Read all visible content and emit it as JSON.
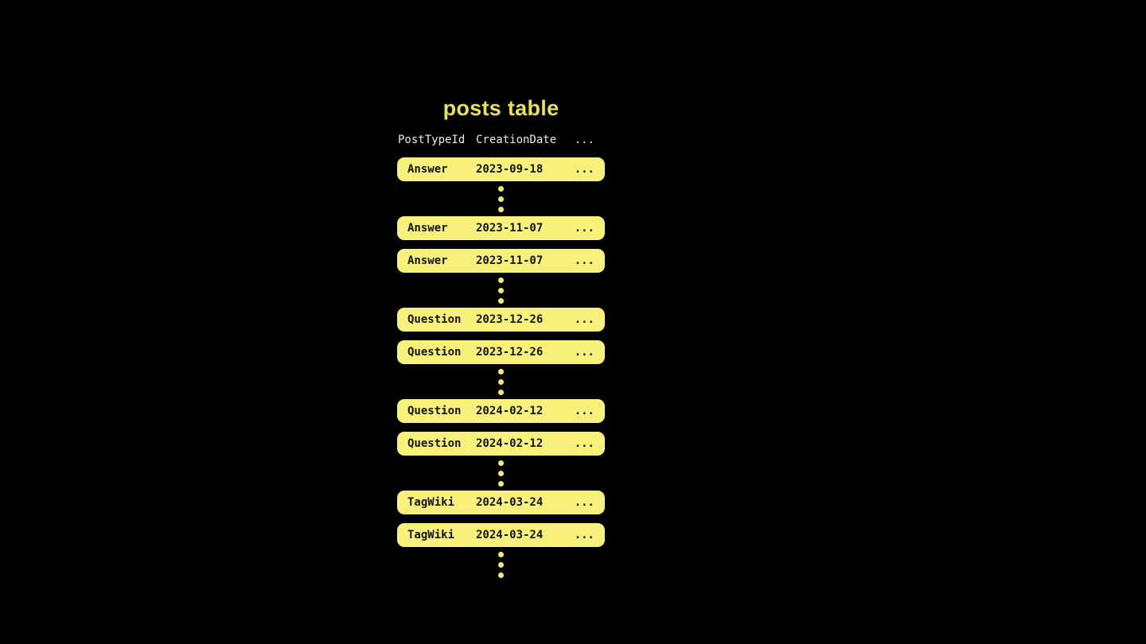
{
  "title": "posts table",
  "header": {
    "col1": "PostTypeId",
    "col2": "CreationDate",
    "col3": "..."
  },
  "rows": [
    {
      "type": "Answer",
      "date": "2023-09-18",
      "more": "..."
    },
    {
      "type": "Answer",
      "date": "2023-11-07",
      "more": "..."
    },
    {
      "type": "Answer",
      "date": "2023-11-07",
      "more": "..."
    },
    {
      "type": "Question",
      "date": "2023-12-26",
      "more": "..."
    },
    {
      "type": "Question",
      "date": "2023-12-26",
      "more": "..."
    },
    {
      "type": "Question",
      "date": "2024-02-12",
      "more": "..."
    },
    {
      "type": "Question",
      "date": "2024-02-12",
      "more": "..."
    },
    {
      "type": "TagWiki",
      "date": "2024-03-24",
      "more": "..."
    },
    {
      "type": "TagWiki",
      "date": "2024-03-24",
      "more": "..."
    }
  ],
  "colors": {
    "background": "#000000",
    "row_fill": "#f7f17c",
    "dot_fill": "#f2ec74",
    "title_text": "#e9e05c",
    "header_text": "#eaeaea",
    "row_text": "#151515"
  }
}
